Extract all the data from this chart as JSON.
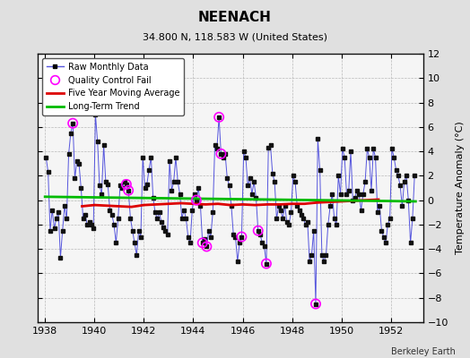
{
  "title": "NEENACH",
  "subtitle": "34.800 N, 118.583 W (United States)",
  "ylabel": "Temperature Anomaly (°C)",
  "credit": "Berkeley Earth",
  "background_color": "#e0e0e0",
  "plot_bg_color": "#f5f5f5",
  "ylim": [
    -10,
    12
  ],
  "yticks": [
    -10,
    -8,
    -6,
    -4,
    -2,
    0,
    2,
    4,
    6,
    8,
    10,
    12
  ],
  "xlim": [
    1937.7,
    1953.3
  ],
  "xticks": [
    1938,
    1940,
    1942,
    1944,
    1946,
    1948,
    1950,
    1952
  ],
  "line_color": "#5555dd",
  "marker_color": "#111111",
  "qc_color": "#ff00ff",
  "moving_avg_color": "#dd0000",
  "trend_color": "#00bb00",
  "raw_data": [
    [
      1938.042,
      3.5
    ],
    [
      1938.125,
      2.3
    ],
    [
      1938.208,
      -2.5
    ],
    [
      1938.292,
      -0.8
    ],
    [
      1938.375,
      -2.3
    ],
    [
      1938.458,
      -1.5
    ],
    [
      1938.542,
      -1.0
    ],
    [
      1938.625,
      -4.7
    ],
    [
      1938.708,
      -2.5
    ],
    [
      1938.792,
      -0.5
    ],
    [
      1938.875,
      -1.5
    ],
    [
      1938.958,
      3.8
    ],
    [
      1939.042,
      5.5
    ],
    [
      1939.125,
      6.3
    ],
    [
      1939.208,
      1.8
    ],
    [
      1939.292,
      3.2
    ],
    [
      1939.375,
      3.0
    ],
    [
      1939.458,
      1.0
    ],
    [
      1939.542,
      -1.5
    ],
    [
      1939.625,
      -1.2
    ],
    [
      1939.708,
      -2.0
    ],
    [
      1939.792,
      -1.8
    ],
    [
      1939.875,
      -2.0
    ],
    [
      1939.958,
      -2.3
    ],
    [
      1940.042,
      7.0
    ],
    [
      1940.125,
      4.8
    ],
    [
      1940.208,
      1.2
    ],
    [
      1940.292,
      0.5
    ],
    [
      1940.375,
      4.5
    ],
    [
      1940.458,
      1.5
    ],
    [
      1940.542,
      1.3
    ],
    [
      1940.625,
      -0.8
    ],
    [
      1940.708,
      -1.2
    ],
    [
      1940.792,
      -2.0
    ],
    [
      1940.875,
      -3.5
    ],
    [
      1940.958,
      -1.5
    ],
    [
      1941.042,
      1.2
    ],
    [
      1941.125,
      1.0
    ],
    [
      1941.208,
      1.5
    ],
    [
      1941.292,
      1.3
    ],
    [
      1941.375,
      0.8
    ],
    [
      1941.458,
      -1.5
    ],
    [
      1941.542,
      -2.5
    ],
    [
      1941.625,
      -3.5
    ],
    [
      1941.708,
      -4.5
    ],
    [
      1941.792,
      -2.5
    ],
    [
      1941.875,
      -3.0
    ],
    [
      1941.958,
      3.5
    ],
    [
      1942.042,
      1.0
    ],
    [
      1942.125,
      1.3
    ],
    [
      1942.208,
      2.5
    ],
    [
      1942.292,
      3.5
    ],
    [
      1942.375,
      0.2
    ],
    [
      1942.458,
      -1.0
    ],
    [
      1942.542,
      -1.5
    ],
    [
      1942.625,
      -1.0
    ],
    [
      1942.708,
      -1.8
    ],
    [
      1942.792,
      -2.2
    ],
    [
      1942.875,
      -2.5
    ],
    [
      1942.958,
      -2.8
    ],
    [
      1943.042,
      3.2
    ],
    [
      1943.125,
      0.8
    ],
    [
      1943.208,
      1.5
    ],
    [
      1943.292,
      3.5
    ],
    [
      1943.375,
      1.5
    ],
    [
      1943.458,
      0.5
    ],
    [
      1943.542,
      -1.5
    ],
    [
      1943.625,
      -0.8
    ],
    [
      1943.708,
      -1.5
    ],
    [
      1943.792,
      -3.0
    ],
    [
      1943.875,
      -3.5
    ],
    [
      1943.958,
      -0.8
    ],
    [
      1944.042,
      0.5
    ],
    [
      1944.125,
      0.0
    ],
    [
      1944.208,
      1.0
    ],
    [
      1944.292,
      -0.5
    ],
    [
      1944.375,
      -3.5
    ],
    [
      1944.458,
      -3.2
    ],
    [
      1944.542,
      -3.8
    ],
    [
      1944.625,
      -2.5
    ],
    [
      1944.708,
      -3.0
    ],
    [
      1944.792,
      -1.0
    ],
    [
      1944.875,
      4.5
    ],
    [
      1944.958,
      4.2
    ],
    [
      1945.042,
      6.8
    ],
    [
      1945.125,
      3.8
    ],
    [
      1945.208,
      3.5
    ],
    [
      1945.292,
      3.8
    ],
    [
      1945.375,
      1.8
    ],
    [
      1945.458,
      1.2
    ],
    [
      1945.542,
      -0.5
    ],
    [
      1945.625,
      -2.8
    ],
    [
      1945.708,
      -3.0
    ],
    [
      1945.792,
      -5.0
    ],
    [
      1945.875,
      -3.5
    ],
    [
      1945.958,
      -3.0
    ],
    [
      1946.042,
      4.0
    ],
    [
      1946.125,
      3.5
    ],
    [
      1946.208,
      1.2
    ],
    [
      1946.292,
      1.8
    ],
    [
      1946.375,
      0.5
    ],
    [
      1946.458,
      1.5
    ],
    [
      1946.542,
      0.2
    ],
    [
      1946.625,
      -2.5
    ],
    [
      1946.708,
      -2.8
    ],
    [
      1946.792,
      -3.5
    ],
    [
      1946.875,
      -3.8
    ],
    [
      1946.958,
      -5.2
    ],
    [
      1947.042,
      4.3
    ],
    [
      1947.125,
      4.5
    ],
    [
      1947.208,
      2.2
    ],
    [
      1947.292,
      1.5
    ],
    [
      1947.375,
      -1.5
    ],
    [
      1947.458,
      -0.5
    ],
    [
      1947.542,
      -0.8
    ],
    [
      1947.625,
      -1.5
    ],
    [
      1947.708,
      -0.5
    ],
    [
      1947.792,
      -1.8
    ],
    [
      1947.875,
      -2.0
    ],
    [
      1947.958,
      -1.0
    ],
    [
      1948.042,
      2.0
    ],
    [
      1948.125,
      1.5
    ],
    [
      1948.208,
      -0.5
    ],
    [
      1948.292,
      -0.8
    ],
    [
      1948.375,
      -1.2
    ],
    [
      1948.458,
      -1.5
    ],
    [
      1948.542,
      -2.0
    ],
    [
      1948.625,
      -1.8
    ],
    [
      1948.708,
      -5.0
    ],
    [
      1948.792,
      -4.5
    ],
    [
      1948.875,
      -2.5
    ],
    [
      1948.958,
      -8.5
    ],
    [
      1949.042,
      5.0
    ],
    [
      1949.125,
      2.5
    ],
    [
      1949.208,
      -4.5
    ],
    [
      1949.292,
      -5.0
    ],
    [
      1949.375,
      -4.5
    ],
    [
      1949.458,
      -2.0
    ],
    [
      1949.542,
      -0.5
    ],
    [
      1949.625,
      0.5
    ],
    [
      1949.708,
      -1.5
    ],
    [
      1949.792,
      -2.0
    ],
    [
      1949.875,
      2.0
    ],
    [
      1949.958,
      0.5
    ],
    [
      1950.042,
      4.2
    ],
    [
      1950.125,
      3.5
    ],
    [
      1950.208,
      0.5
    ],
    [
      1950.292,
      0.8
    ],
    [
      1950.375,
      4.0
    ],
    [
      1950.458,
      0.0
    ],
    [
      1950.542,
      0.2
    ],
    [
      1950.625,
      0.8
    ],
    [
      1950.708,
      0.5
    ],
    [
      1950.792,
      -0.8
    ],
    [
      1950.875,
      0.5
    ],
    [
      1950.958,
      1.5
    ],
    [
      1951.042,
      4.2
    ],
    [
      1951.125,
      3.5
    ],
    [
      1951.208,
      0.8
    ],
    [
      1951.292,
      4.2
    ],
    [
      1951.375,
      3.5
    ],
    [
      1951.458,
      -1.0
    ],
    [
      1951.542,
      -0.5
    ],
    [
      1951.625,
      -2.5
    ],
    [
      1951.708,
      -3.0
    ],
    [
      1951.792,
      -3.5
    ],
    [
      1951.875,
      -2.0
    ],
    [
      1951.958,
      -1.5
    ],
    [
      1952.042,
      4.2
    ],
    [
      1952.125,
      3.5
    ],
    [
      1952.208,
      2.5
    ],
    [
      1952.292,
      2.0
    ],
    [
      1952.375,
      1.2
    ],
    [
      1952.458,
      -0.5
    ],
    [
      1952.542,
      1.5
    ],
    [
      1952.625,
      2.0
    ],
    [
      1952.708,
      0.0
    ],
    [
      1952.792,
      -3.5
    ],
    [
      1952.875,
      -1.5
    ],
    [
      1952.958,
      2.0
    ]
  ],
  "qc_fail_points": [
    [
      1939.125,
      6.3
    ],
    [
      1941.292,
      1.3
    ],
    [
      1941.375,
      0.8
    ],
    [
      1944.125,
      0.0
    ],
    [
      1944.375,
      -3.5
    ],
    [
      1944.542,
      -3.8
    ],
    [
      1945.042,
      6.8
    ],
    [
      1945.125,
      3.8
    ],
    [
      1945.958,
      -3.0
    ],
    [
      1946.625,
      -2.5
    ],
    [
      1946.958,
      -5.2
    ],
    [
      1948.958,
      -8.5
    ]
  ],
  "moving_avg_x": [
    1939.5,
    1940.0,
    1940.5,
    1941.0,
    1941.5,
    1942.0,
    1942.5,
    1943.0,
    1943.5,
    1944.0,
    1944.5,
    1945.0,
    1945.5,
    1946.0,
    1946.5,
    1947.0,
    1947.5,
    1948.0,
    1948.5,
    1949.0,
    1949.5,
    1950.0,
    1950.5,
    1951.0,
    1951.5
  ],
  "moving_avg_y": [
    -0.5,
    -0.4,
    -0.45,
    -0.5,
    -0.55,
    -0.4,
    -0.35,
    -0.3,
    -0.25,
    -0.3,
    -0.35,
    -0.3,
    -0.4,
    -0.35,
    -0.4,
    -0.35,
    -0.35,
    -0.3,
    -0.3,
    -0.2,
    -0.15,
    -0.1,
    -0.05,
    0.0,
    0.05
  ],
  "trend_x": [
    1938.0,
    1953.0
  ],
  "trend_y": [
    0.28,
    -0.1
  ]
}
